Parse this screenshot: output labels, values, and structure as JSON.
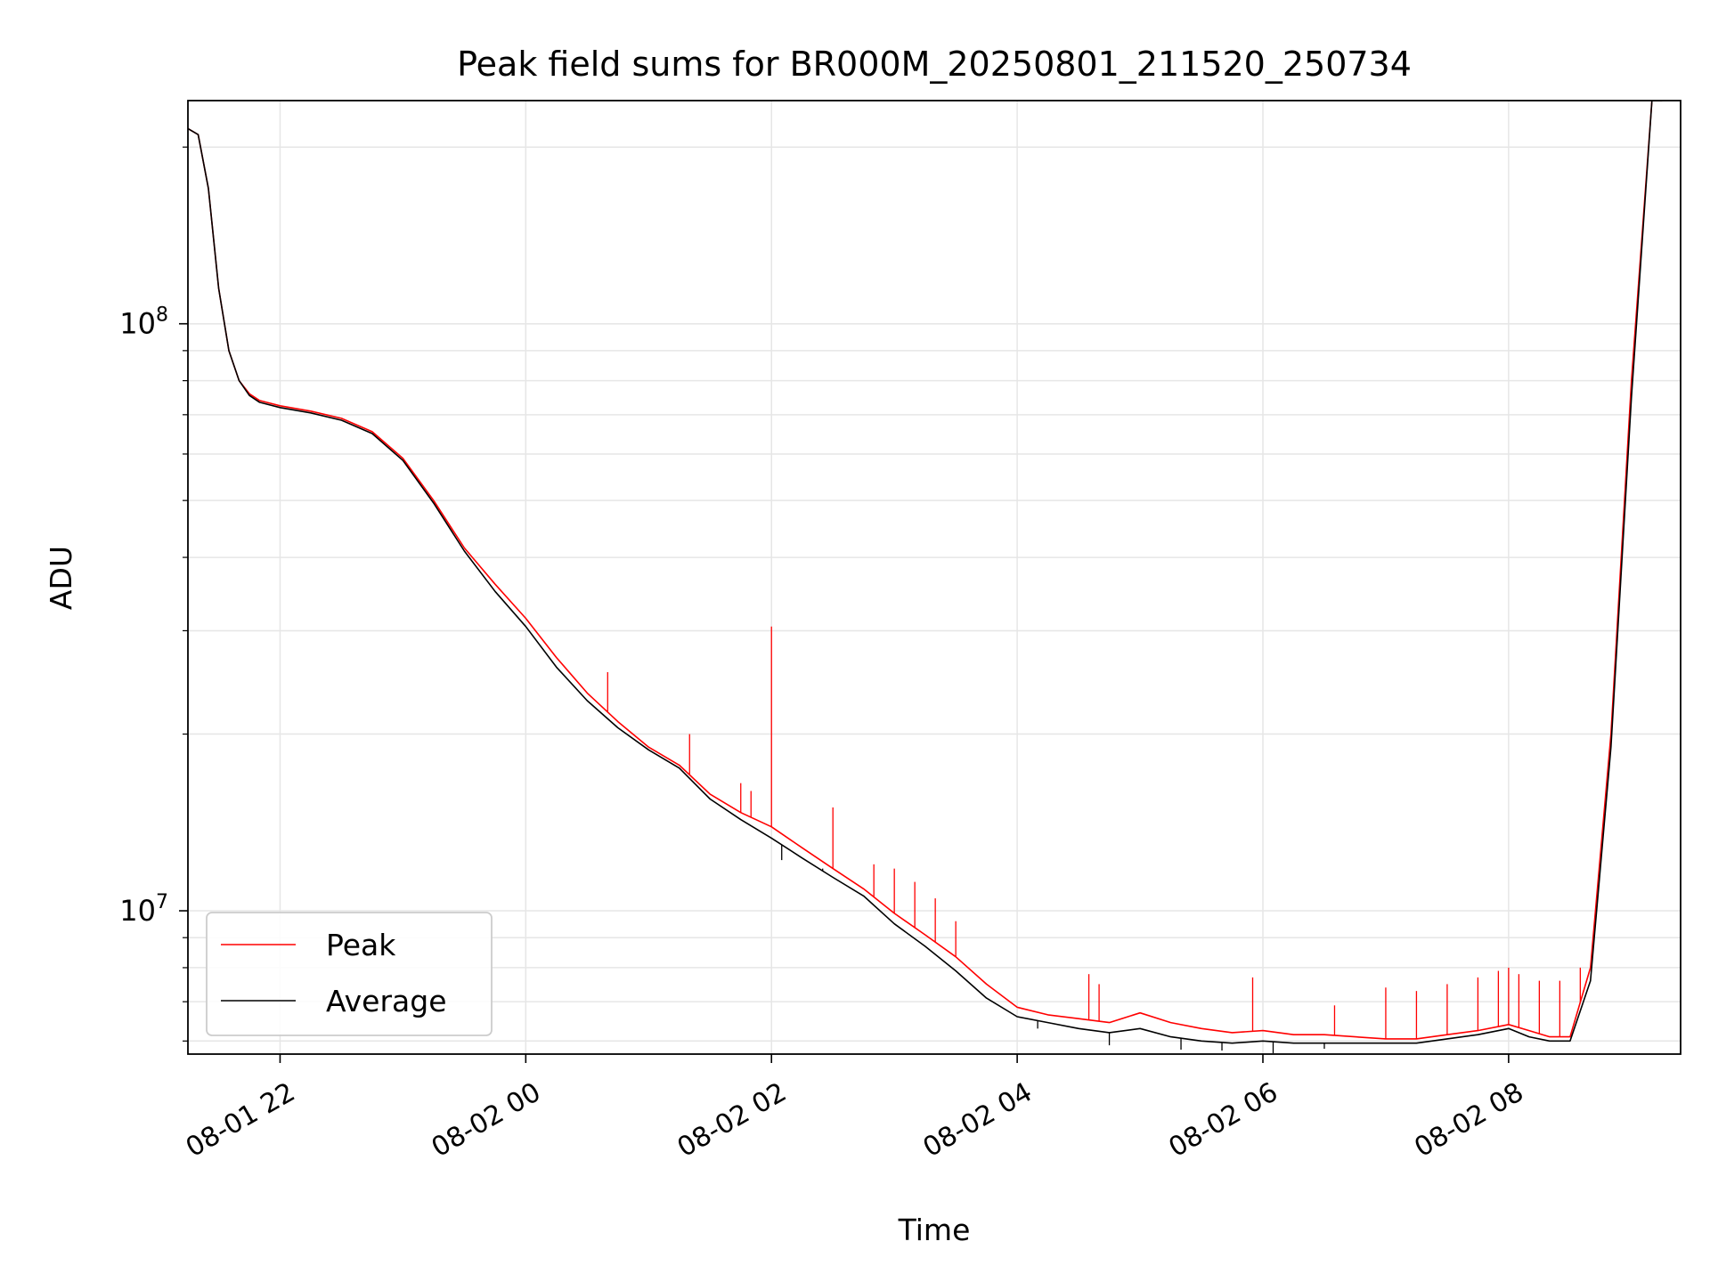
{
  "chart_data": {
    "type": "line",
    "title": "Peak field sums for BR000M_20250801_211520_250734",
    "xlabel": "Time",
    "ylabel": "ADU",
    "yscale": "log",
    "ylim": [
      5700000,
      240000000
    ],
    "xlim": [
      "2025-08-01 21:15",
      "2025-08-02 09:24"
    ],
    "x_ticks": [
      {
        "value": "2025-08-01 22:00",
        "label": "08-01 22"
      },
      {
        "value": "2025-08-02 00:00",
        "label": "08-02 00"
      },
      {
        "value": "2025-08-02 02:00",
        "label": "08-02 02"
      },
      {
        "value": "2025-08-02 04:00",
        "label": "08-02 04"
      },
      {
        "value": "2025-08-02 06:00",
        "label": "08-02 06"
      },
      {
        "value": "2025-08-02 08:00",
        "label": "08-02 08"
      }
    ],
    "y_ticks": [
      {
        "value": 10000000,
        "base": "10",
        "exp": "7"
      },
      {
        "value": 100000000,
        "base": "10",
        "exp": "8"
      }
    ],
    "grid": true,
    "legend_position": "lower-left",
    "series": [
      {
        "name": "Peak",
        "color": "#ff0000",
        "x": [
          "2025-08-01 21:15",
          "2025-08-01 21:20",
          "2025-08-01 21:25",
          "2025-08-01 21:30",
          "2025-08-01 21:35",
          "2025-08-01 21:40",
          "2025-08-01 21:45",
          "2025-08-01 21:50",
          "2025-08-01 22:00",
          "2025-08-01 22:15",
          "2025-08-01 22:30",
          "2025-08-01 22:45",
          "2025-08-01 23:00",
          "2025-08-01 23:15",
          "2025-08-01 23:30",
          "2025-08-01 23:45",
          "2025-08-02 00:00",
          "2025-08-02 00:15",
          "2025-08-02 00:30",
          "2025-08-02 00:45",
          "2025-08-02 01:00",
          "2025-08-02 01:15",
          "2025-08-02 01:30",
          "2025-08-02 01:45",
          "2025-08-02 02:00",
          "2025-08-02 02:15",
          "2025-08-02 02:30",
          "2025-08-02 02:45",
          "2025-08-02 03:00",
          "2025-08-02 03:15",
          "2025-08-02 03:30",
          "2025-08-02 03:45",
          "2025-08-02 04:00",
          "2025-08-02 04:15",
          "2025-08-02 04:30",
          "2025-08-02 04:45",
          "2025-08-02 05:00",
          "2025-08-02 05:15",
          "2025-08-02 05:30",
          "2025-08-02 05:45",
          "2025-08-02 06:00",
          "2025-08-02 06:15",
          "2025-08-02 06:30",
          "2025-08-02 06:45",
          "2025-08-02 07:00",
          "2025-08-02 07:15",
          "2025-08-02 07:30",
          "2025-08-02 07:45",
          "2025-08-02 08:00",
          "2025-08-02 08:10",
          "2025-08-02 08:20",
          "2025-08-02 08:30",
          "2025-08-02 08:40",
          "2025-08-02 08:50",
          "2025-08-02 09:00",
          "2025-08-02 09:10",
          "2025-08-02 09:15"
        ],
        "values": [
          215000000,
          210000000,
          170000000,
          115000000,
          90000000,
          80000000,
          76000000,
          74000000,
          72500000,
          71000000,
          69000000,
          65500000,
          59000000,
          50000000,
          41500000,
          36000000,
          31500000,
          27000000,
          23500000,
          21000000,
          19000000,
          17700000,
          15800000,
          14700000,
          13900000,
          12800000,
          11800000,
          10900000,
          9900000,
          9100000,
          8350000,
          7500000,
          6850000,
          6650000,
          6550000,
          6450000,
          6700000,
          6450000,
          6300000,
          6200000,
          6250000,
          6150000,
          6150000,
          6100000,
          6050000,
          6050000,
          6150000,
          6250000,
          6400000,
          6250000,
          6100000,
          6100000,
          8000000,
          20000000,
          80000000,
          240000000,
          240000000
        ]
      },
      {
        "name": "Average",
        "color": "#000000",
        "x": [
          "2025-08-01 21:15",
          "2025-08-01 21:20",
          "2025-08-01 21:25",
          "2025-08-01 21:30",
          "2025-08-01 21:35",
          "2025-08-01 21:40",
          "2025-08-01 21:45",
          "2025-08-01 21:50",
          "2025-08-01 22:00",
          "2025-08-01 22:15",
          "2025-08-01 22:30",
          "2025-08-01 22:45",
          "2025-08-01 23:00",
          "2025-08-01 23:15",
          "2025-08-01 23:30",
          "2025-08-01 23:45",
          "2025-08-02 00:00",
          "2025-08-02 00:15",
          "2025-08-02 00:30",
          "2025-08-02 00:45",
          "2025-08-02 01:00",
          "2025-08-02 01:15",
          "2025-08-02 01:30",
          "2025-08-02 01:45",
          "2025-08-02 02:00",
          "2025-08-02 02:15",
          "2025-08-02 02:30",
          "2025-08-02 02:45",
          "2025-08-02 03:00",
          "2025-08-02 03:15",
          "2025-08-02 03:30",
          "2025-08-02 03:45",
          "2025-08-02 04:00",
          "2025-08-02 04:15",
          "2025-08-02 04:30",
          "2025-08-02 04:45",
          "2025-08-02 05:00",
          "2025-08-02 05:15",
          "2025-08-02 05:30",
          "2025-08-02 05:45",
          "2025-08-02 06:00",
          "2025-08-02 06:15",
          "2025-08-02 06:30",
          "2025-08-02 06:45",
          "2025-08-02 07:00",
          "2025-08-02 07:15",
          "2025-08-02 07:30",
          "2025-08-02 07:45",
          "2025-08-02 08:00",
          "2025-08-02 08:10",
          "2025-08-02 08:20",
          "2025-08-02 08:30",
          "2025-08-02 08:40",
          "2025-08-02 08:50",
          "2025-08-02 09:00",
          "2025-08-02 09:10",
          "2025-08-02 09:15"
        ],
        "values": [
          215000000,
          210000000,
          170000000,
          115000000,
          90000000,
          80000000,
          75500000,
          73500000,
          72000000,
          70500000,
          68500000,
          65000000,
          58500000,
          49500000,
          41000000,
          35000000,
          30500000,
          26000000,
          22800000,
          20500000,
          18800000,
          17500000,
          15500000,
          14300000,
          13300000,
          12300000,
          11400000,
          10600000,
          9500000,
          8700000,
          7900000,
          7100000,
          6600000,
          6450000,
          6300000,
          6200000,
          6300000,
          6100000,
          6000000,
          5950000,
          6000000,
          5950000,
          5950000,
          5950000,
          5950000,
          5950000,
          6050000,
          6150000,
          6300000,
          6100000,
          6000000,
          6000000,
          7600000,
          19000000,
          75000000,
          240000000,
          240000000
        ]
      }
    ],
    "spikes": {
      "Peak": [
        {
          "x": "2025-08-02 00:40",
          "y": 25500000
        },
        {
          "x": "2025-08-02 01:20",
          "y": 20000000
        },
        {
          "x": "2025-08-02 01:45",
          "y": 16500000
        },
        {
          "x": "2025-08-02 01:50",
          "y": 16000000
        },
        {
          "x": "2025-08-02 02:00",
          "y": 30500000
        },
        {
          "x": "2025-08-02 02:30",
          "y": 15000000
        },
        {
          "x": "2025-08-02 02:50",
          "y": 12000000
        },
        {
          "x": "2025-08-02 03:00",
          "y": 11800000
        },
        {
          "x": "2025-08-02 03:10",
          "y": 11200000
        },
        {
          "x": "2025-08-02 03:20",
          "y": 10500000
        },
        {
          "x": "2025-08-02 03:30",
          "y": 9600000
        },
        {
          "x": "2025-08-02 04:35",
          "y": 7800000
        },
        {
          "x": "2025-08-02 04:40",
          "y": 7500000
        },
        {
          "x": "2025-08-02 05:55",
          "y": 7700000
        },
        {
          "x": "2025-08-02 06:35",
          "y": 6900000
        },
        {
          "x": "2025-08-02 07:00",
          "y": 7400000
        },
        {
          "x": "2025-08-02 07:15",
          "y": 7300000
        },
        {
          "x": "2025-08-02 07:30",
          "y": 7500000
        },
        {
          "x": "2025-08-02 07:45",
          "y": 7700000
        },
        {
          "x": "2025-08-02 07:55",
          "y": 7900000
        },
        {
          "x": "2025-08-02 08:00",
          "y": 8000000
        },
        {
          "x": "2025-08-02 08:05",
          "y": 7800000
        },
        {
          "x": "2025-08-02 08:15",
          "y": 7600000
        },
        {
          "x": "2025-08-02 08:25",
          "y": 7600000
        },
        {
          "x": "2025-08-02 08:35",
          "y": 8000000
        }
      ],
      "Average": [
        {
          "x": "2025-08-02 02:05",
          "y": 12200000
        },
        {
          "x": "2025-08-02 02:25",
          "y": 11800000
        },
        {
          "x": "2025-08-02 03:45",
          "y": 7100000
        },
        {
          "x": "2025-08-02 04:10",
          "y": 6300000
        },
        {
          "x": "2025-08-02 04:45",
          "y": 5900000
        },
        {
          "x": "2025-08-02 05:20",
          "y": 5800000
        },
        {
          "x": "2025-08-02 05:40",
          "y": 5780000
        },
        {
          "x": "2025-08-02 06:05",
          "y": 5720000
        },
        {
          "x": "2025-08-02 06:30",
          "y": 5820000
        }
      ]
    }
  }
}
